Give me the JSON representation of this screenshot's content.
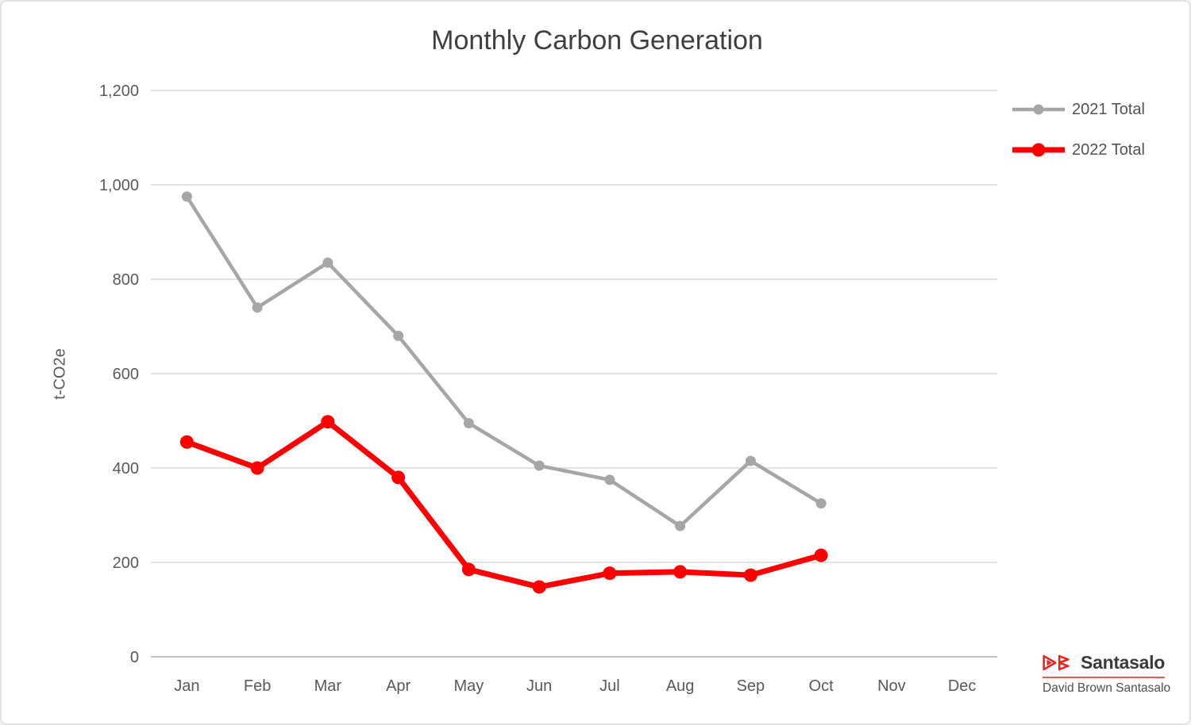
{
  "chart_data": {
    "type": "line",
    "title": "Monthly Carbon Generation",
    "xlabel": "",
    "ylabel": "t-CO2e",
    "categories": [
      "Jan",
      "Feb",
      "Mar",
      "Apr",
      "May",
      "Jun",
      "Jul",
      "Aug",
      "Sep",
      "Oct",
      "Nov",
      "Dec"
    ],
    "series": [
      {
        "name": "2021 Total",
        "color": "#a6a6a6",
        "values": [
          975,
          740,
          835,
          680,
          495,
          405,
          375,
          277,
          415,
          325,
          null,
          null
        ]
      },
      {
        "name": "2022 Total",
        "color": "#fe0000",
        "values": [
          455,
          400,
          498,
          380,
          185,
          148,
          177,
          180,
          173,
          215,
          null,
          null
        ]
      }
    ],
    "ylim": [
      0,
      1200
    ],
    "ytick_interval": 200,
    "ytick_labels": [
      "0",
      "200",
      "400",
      "600",
      "800",
      "1,000",
      "1,200"
    ],
    "grid": true,
    "legend_position": "right-top"
  },
  "logo": {
    "brand": "Santasalo",
    "subtitle": "David Brown Santasalo",
    "mark_color": "#e5261d"
  },
  "colors": {
    "gridline": "#d9d9d9",
    "baseline": "#c0c0c0",
    "axis_text": "#595959",
    "title_text": "#3f3f3f"
  }
}
